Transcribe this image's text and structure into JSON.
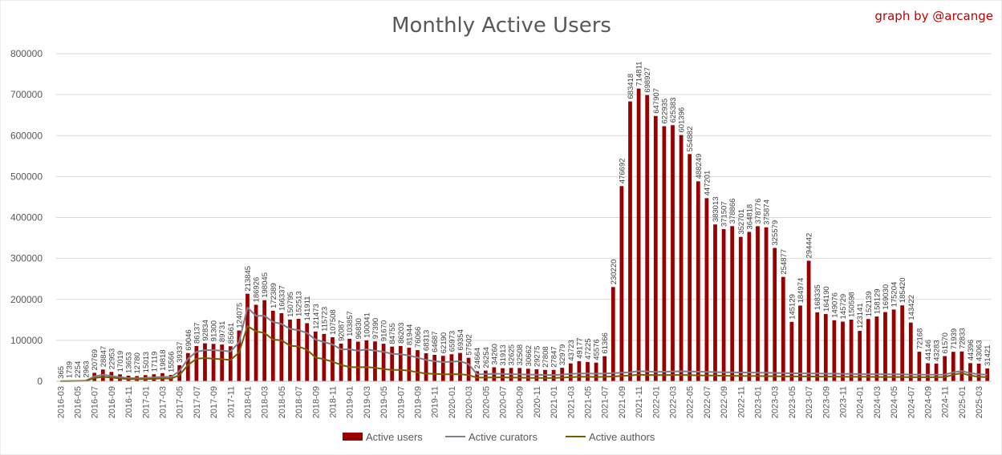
{
  "chart_data": {
    "type": "bar",
    "title": "Monthly Active Users",
    "credit": "graph by @arcange",
    "ylim": [
      0,
      800000
    ],
    "yticks": [
      "0",
      "100000",
      "200000",
      "300000",
      "400000",
      "500000",
      "600000",
      "700000",
      "800000"
    ],
    "grid": "horizontal",
    "legend_position": "bottom",
    "categories": [
      "2016-03",
      "2016-04",
      "2016-05",
      "2016-06",
      "2016-07",
      "2016-08",
      "2016-09",
      "2016-10",
      "2016-11",
      "2016-12",
      "2017-01",
      "2017-02",
      "2017-03",
      "2017-04",
      "2017-05",
      "2017-06",
      "2017-07",
      "2017-08",
      "2017-09",
      "2017-10",
      "2017-11",
      "2017-12",
      "2018-01",
      "2018-02",
      "2018-03",
      "2018-04",
      "2018-05",
      "2018-06",
      "2018-07",
      "2018-08",
      "2018-09",
      "2018-10",
      "2018-11",
      "2018-12",
      "2019-01",
      "2019-02",
      "2019-03",
      "2019-04",
      "2019-05",
      "2019-06",
      "2019-07",
      "2019-08",
      "2019-09",
      "2019-10",
      "2019-11",
      "2019-12",
      "2020-01",
      "2020-02",
      "2020-03",
      "2020-04",
      "2020-05",
      "2020-06",
      "2020-07",
      "2020-08",
      "2020-09",
      "2020-10",
      "2020-11",
      "2020-12",
      "2021-01",
      "2021-02",
      "2021-03",
      "2021-04",
      "2021-05",
      "2021-06",
      "2021-07",
      "2021-08",
      "2021-09",
      "2021-10",
      "2021-11",
      "2021-12",
      "2022-01",
      "2022-02",
      "2022-03",
      "2022-04",
      "2022-05",
      "2022-06",
      "2022-07",
      "2022-08",
      "2022-09",
      "2022-10",
      "2022-11",
      "2022-12",
      "2023-01",
      "2023-02",
      "2023-03",
      "2023-04",
      "2023-05",
      "2023-06",
      "2023-07",
      "2023-08",
      "2023-09",
      "2023-10",
      "2023-11",
      "2023-12",
      "2024-01",
      "2024-02",
      "2024-03",
      "2024-04",
      "2024-05",
      "2024-06",
      "2024-07",
      "2024-08",
      "2024-09",
      "2024-10",
      "2024-11",
      "2024-12",
      "2025-01",
      "2025-02",
      "2025-03",
      "2025-04"
    ],
    "xtick_labels": [
      "2016-03",
      "2016-05",
      "2016-07",
      "2016-09",
      "2016-11",
      "2017-01",
      "2017-03",
      "2017-05",
      "2017-07",
      "2017-09",
      "2017-11",
      "2018-01",
      "2018-03",
      "2018-05",
      "2018-07",
      "2018-09",
      "2018-11",
      "2019-01",
      "2019-03",
      "2019-05",
      "2019-07",
      "2019-09",
      "2019-11",
      "2020-01",
      "2020-03",
      "2020-05",
      "2020-07",
      "2020-09",
      "2020-11",
      "2021-01",
      "2021-03",
      "2021-05",
      "2021-07",
      "2021-09",
      "2021-11",
      "2022-01",
      "2022-03",
      "2022-05",
      "2022-07",
      "2022-09",
      "2022-11",
      "2023-01",
      "2023-03",
      "2023-05",
      "2023-07",
      "2023-09",
      "2023-11",
      "2024-01",
      "2024-03",
      "2024-05",
      "2024-07",
      "2024-09",
      "2024-11",
      "2025-01",
      "2025-03"
    ],
    "series": [
      {
        "name": "Active users",
        "kind": "bar",
        "color": "#990000",
        "values": [
          365,
          1739,
          2254,
          2963,
          20769,
          28847,
          22953,
          17019,
          13653,
          12780,
          15013,
          17119,
          19818,
          15566,
          39337,
          69046,
          86137,
          92834,
          91300,
          89731,
          85661,
          124075,
          213845,
          186926,
          198045,
          172389,
          166337,
          150795,
          152513,
          141911,
          121473,
          115723,
          107508,
          92087,
          103857,
          96830,
          100041,
          97390,
          91670,
          84755,
          86203,
          81944,
          76066,
          68313,
          64687,
          62190,
          65973,
          69354,
          57502,
          24664,
          26254,
          34260,
          31913,
          32625,
          32508,
          30662,
          29275,
          27808,
          27847,
          32979,
          43723,
          49177,
          47225,
          45576,
          61366,
          230220,
          476692,
          683418,
          714811,
          698927,
          647907,
          622935,
          625383,
          601396,
          554882,
          488249,
          447201,
          383013,
          371507,
          378866,
          352701,
          364818,
          378776,
          375874,
          325579,
          254877,
          145129,
          184974,
          294442,
          168335,
          164190,
          149076,
          145729,
          150598,
          123141,
          152139,
          158129,
          169030,
          175204,
          185420,
          143422,
          72168,
          44146,
          43283,
          61570,
          71939,
          72833,
          44396,
          43063,
          31421
        ]
      },
      {
        "name": "Active curators",
        "kind": "line",
        "color": "#7f7f8c",
        "values": [
          200,
          600,
          1000,
          1500,
          12000,
          16000,
          13000,
          10000,
          8000,
          7500,
          8500,
          9500,
          11000,
          10500,
          25000,
          55000,
          72000,
          76000,
          76000,
          75000,
          73000,
          95000,
          180000,
          160000,
          160000,
          145000,
          140000,
          128000,
          125000,
          118000,
          102000,
          96000,
          90000,
          78000,
          78000,
          75000,
          78000,
          75000,
          72000,
          67000,
          66000,
          63000,
          58000,
          52000,
          49000,
          47000,
          48000,
          49000,
          42000,
          17000,
          17500,
          18500,
          18000,
          17500,
          17000,
          16500,
          16000,
          15500,
          15500,
          16500,
          18000,
          19000,
          19000,
          18500,
          19000,
          20000,
          21000,
          22000,
          25000,
          24000,
          23000,
          23500,
          24000,
          24500,
          24000,
          23500,
          23000,
          22500,
          22000,
          22000,
          21500,
          21500,
          21000,
          21000,
          20500,
          20000,
          19500,
          19500,
          19000,
          19000,
          18500,
          18500,
          18000,
          18000,
          17500,
          17500,
          17500,
          17000,
          17000,
          17000,
          16500,
          16500,
          16000,
          16000,
          16500,
          22000,
          25000,
          20000,
          17000,
          16000
        ]
      },
      {
        "name": "Active authors",
        "kind": "line",
        "color": "#7a5c00",
        "values": [
          150,
          400,
          700,
          1000,
          8000,
          11000,
          9000,
          7000,
          5500,
          5000,
          5500,
          6000,
          7000,
          6500,
          15000,
          40000,
          55000,
          57000,
          55000,
          54000,
          52000,
          70000,
          135000,
          122000,
          118000,
          102000,
          100000,
          87000,
          85000,
          77000,
          58000,
          54000,
          48000,
          40000,
          35000,
          34000,
          35000,
          33000,
          30000,
          28000,
          28000,
          26000,
          22000,
          19000,
          18000,
          17000,
          17000,
          17500,
          15000,
          9000,
          9000,
          9500,
          9500,
          9000,
          9000,
          8500,
          8500,
          8000,
          8000,
          9000,
          10000,
          11000,
          11000,
          10500,
          11000,
          12000,
          13000,
          14000,
          16000,
          15500,
          15000,
          15000,
          15500,
          15500,
          15000,
          14500,
          14000,
          14000,
          13500,
          13500,
          13000,
          13000,
          13000,
          12500,
          12500,
          12000,
          12000,
          12000,
          12000,
          11500,
          11500,
          11500,
          11000,
          11000,
          11000,
          11000,
          10500,
          10500,
          10500,
          10500,
          10000,
          10000,
          10000,
          10000,
          10500,
          16000,
          20000,
          14000,
          11000,
          10000
        ]
      }
    ]
  }
}
